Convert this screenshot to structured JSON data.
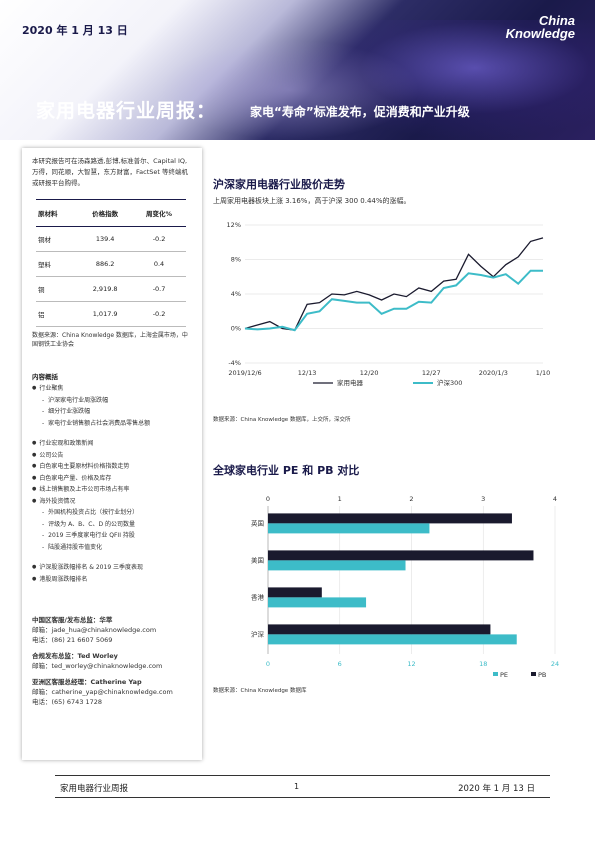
{
  "header": {
    "date": "2020 年 1 月 13 日",
    "logo_line1": "China",
    "logo_line2": "Knowledge",
    "title": "家用电器行业周报：",
    "subtitle": "家电“寿命”标准发布，促消费和产业升级"
  },
  "left": {
    "intro": "本研究报告可在汤森路透,彭博,标准普尔、Capital IQ,万得，同花顺，大智慧，东方财富，FactSet 等终端机或研报平台购得。",
    "table": {
      "headers": [
        "原材料",
        "价格指数",
        "周变化%"
      ],
      "rows": [
        [
          "铜材",
          "139.4",
          "-0.2"
        ],
        [
          "塑料",
          "886.2",
          "0.4"
        ],
        [
          "铜",
          "2,919.8",
          "-0.7"
        ],
        [
          "铝",
          "1,017.9",
          "-0.2"
        ]
      ]
    },
    "table_source": "数据来源：China Knowledge 数据库，上海金属市场，中国钢铁工业协会",
    "contents_title": "内容概括",
    "toc": [
      {
        "type": "main",
        "text": "行业聚焦"
      },
      {
        "type": "sub",
        "text": "沪深家电行业周涨跌幅"
      },
      {
        "type": "sub",
        "text": "细分行业涨跌幅"
      },
      {
        "type": "sub",
        "text": "家电行业销售额占社会消费品零售总额"
      },
      {
        "type": "main",
        "text": "行业宏观和政策新闻",
        "gap": true
      },
      {
        "type": "main",
        "text": "公司公告"
      },
      {
        "type": "main",
        "text": "白色家电主要原材料价格指数走势"
      },
      {
        "type": "main",
        "text": "白色家电产量、价格及库存"
      },
      {
        "type": "main",
        "text": "线上销售额及上市公司市场占有率"
      },
      {
        "type": "main",
        "text": "海外投资情况"
      },
      {
        "type": "sub",
        "text": "外国机构投资占比（按行业划分）"
      },
      {
        "type": "sub",
        "text": "评级为 A、B、C、D 的公司数量"
      },
      {
        "type": "sub",
        "text": "2019 三季度家电行业 QFII 持股"
      },
      {
        "type": "sub",
        "text": "陆股通持股市值变化"
      },
      {
        "type": "main",
        "text": "沪深股涨跌幅排名 & 2019 三季度表现",
        "gap": true
      },
      {
        "type": "main",
        "text": "港股周涨跌幅排名"
      }
    ],
    "contacts": [
      {
        "role": "中国区客服/发布总监：华萃",
        "lines": [
          "邮箱：jade_hua@chinaknowledge.com",
          "电话：(86) 21 6607 5069"
        ]
      },
      {
        "role": "合规发布总监：Ted Worley",
        "lines": [
          "邮箱：ted_worley@chinaknowledge.com"
        ]
      },
      {
        "role": "亚洲区客服总经理：Catherine Yap",
        "lines": [
          "邮箱：catherine_yap@chinaknowledge.com",
          "电话：(65) 6743 1728"
        ]
      }
    ]
  },
  "section1": {
    "title": "沪深家用电器行业股价走势",
    "desc": "上周家用电器板块上涨 3.16%，高于沪深 300 0.44%的涨幅。",
    "source": "数据来源：China Knowledge 数据库，上交所，深交所"
  },
  "section2": {
    "title": "全球家电行业 PE 和 PB 对比",
    "source": "数据来源：China Knowledge 数据库"
  },
  "chart_data": [
    {
      "type": "line",
      "title": "",
      "x_tick_labels": [
        "2019/12/6",
        "12/13",
        "12/20",
        "12/27",
        "2020/1/3",
        "1/10"
      ],
      "y_tick_labels": [
        "-4%",
        "0%",
        "4%",
        "8%",
        "12%"
      ],
      "ylim": [
        -4,
        12
      ],
      "grid": true,
      "legend_position": "bottom",
      "colors": {
        "家用电器": "#1a1a2e",
        "沪深300": "#3dbcc8"
      },
      "series": [
        {
          "name": "家用电器",
          "values": [
            0.0,
            0.4,
            0.8,
            0.0,
            -0.2,
            2.8,
            3.0,
            4.0,
            3.9,
            4.3,
            3.9,
            3.3,
            4.0,
            3.7,
            4.7,
            4.3,
            5.5,
            5.7,
            8.6,
            7.2,
            6.0,
            7.4,
            8.3,
            10.1,
            10.5
          ]
        },
        {
          "name": "沪深300",
          "values": [
            0.0,
            -0.1,
            0.0,
            0.2,
            -0.2,
            1.7,
            2.0,
            3.4,
            3.2,
            3.0,
            3.0,
            1.7,
            2.3,
            2.3,
            3.1,
            3.0,
            4.7,
            5.0,
            6.4,
            6.2,
            5.9,
            6.3,
            5.2,
            6.7,
            6.7
          ]
        }
      ]
    },
    {
      "type": "bar",
      "orientation": "horizontal",
      "categories": [
        "英国",
        "美国",
        "香港",
        "沪深"
      ],
      "series": [
        {
          "name": "PB",
          "axis": "top",
          "values": [
            3.4,
            3.7,
            0.75,
            3.1
          ]
        },
        {
          "name": "PE",
          "axis": "bottom",
          "values": [
            13.5,
            11.5,
            8.2,
            20.8
          ]
        }
      ],
      "top_axis_ticks": [
        "0",
        "1",
        "2",
        "3",
        "4"
      ],
      "top_axis_range": [
        0,
        4
      ],
      "bottom_axis_ticks": [
        "0",
        "6",
        "12",
        "18",
        "24"
      ],
      "bottom_axis_range": [
        0,
        24
      ],
      "colors": {
        "PE": "#3dbcc8",
        "PB": "#1a1a2e"
      },
      "legend_position": "bottom-right"
    }
  ],
  "footer": {
    "left": "家用电器行业周报",
    "page": "1",
    "right": "2020 年 1 月 13 日"
  }
}
